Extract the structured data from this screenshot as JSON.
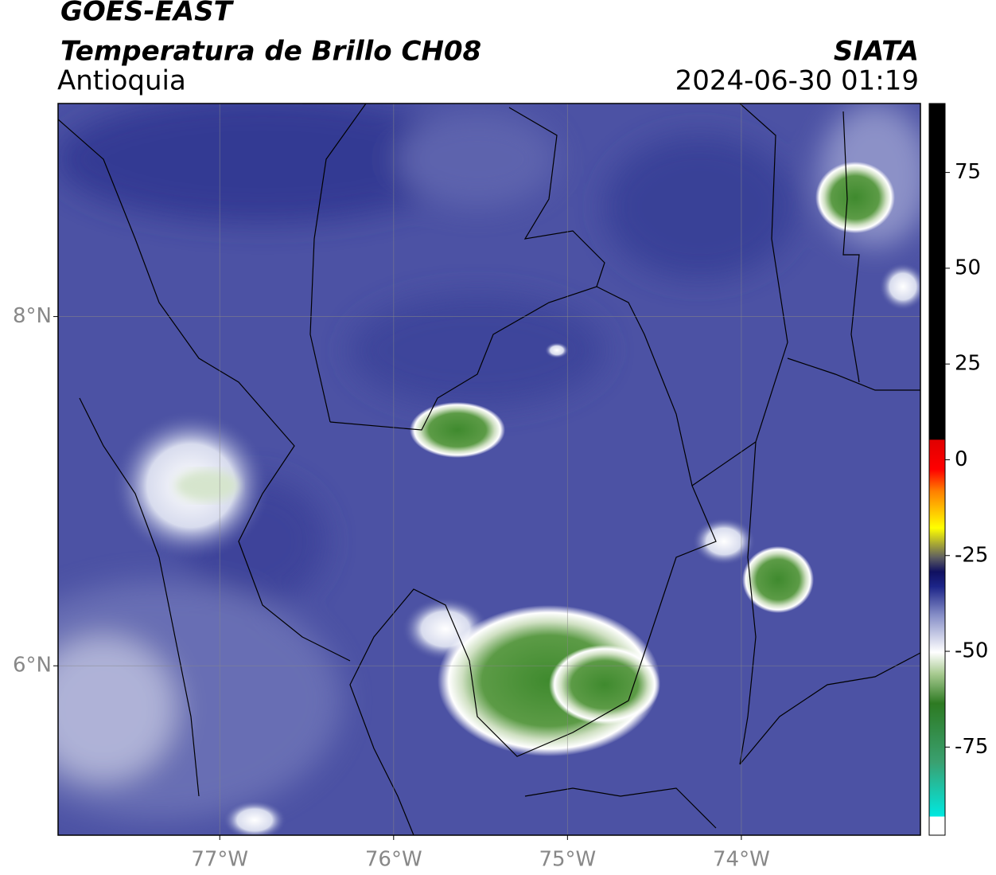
{
  "header": {
    "title": "GOES-EAST",
    "subtitle": "Temperatura de Brillo CH08",
    "region": "Antioquia",
    "source": "SIATA",
    "timestamp": "2024-06-30 01:19"
  },
  "map": {
    "xlim": [
      -77.93,
      -72.97
    ],
    "ylim": [
      5.03,
      9.22
    ],
    "xticks": [
      {
        "value": -77,
        "label": "77°W"
      },
      {
        "value": -76,
        "label": "76°W"
      },
      {
        "value": -75,
        "label": "75°W"
      },
      {
        "value": -74,
        "label": "74°W"
      }
    ],
    "yticks": [
      {
        "value": 8,
        "label": "8°N"
      },
      {
        "value": 6,
        "label": "6°N"
      }
    ],
    "grid": true
  },
  "colorbar": {
    "lim": [
      -98,
      93
    ],
    "ticks": [
      75,
      50,
      25,
      0,
      -25,
      -50,
      -75
    ]
  }
}
